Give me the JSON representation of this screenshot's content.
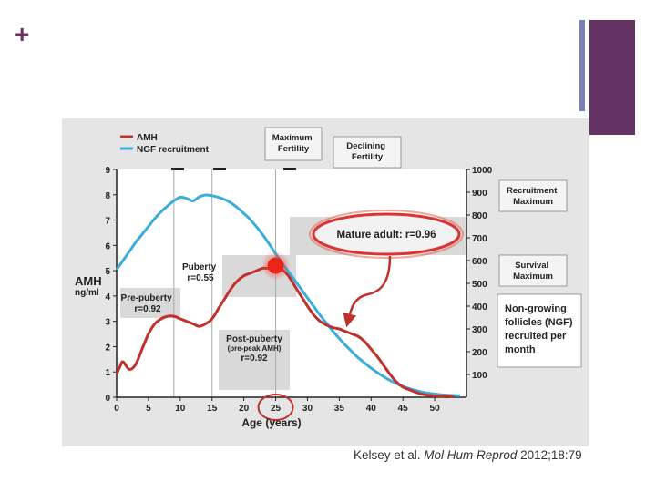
{
  "slide": {
    "plus_glyph": "+",
    "accent_colors": {
      "thin_bar": "#7c7fb3",
      "thick_bar": "#633262",
      "plus": "#6b2f66"
    },
    "citation": {
      "authors": "Kelsey et al. ",
      "journal": "Mol Hum Reprod",
      "rest": " 2012;18:79"
    }
  },
  "chart_data": {
    "type": "line",
    "xlabel": "Age (years)",
    "ylabel_left": "AMH",
    "ylabel_left_units": "ng/ml",
    "xlim": [
      0,
      55
    ],
    "ylim_left": [
      0,
      9
    ],
    "ylim_right": [
      0,
      1000
    ],
    "x_ticks": [
      0,
      5,
      10,
      15,
      20,
      25,
      30,
      35,
      40,
      45,
      50
    ],
    "y_left_ticks": [
      0,
      1,
      2,
      3,
      4,
      5,
      6,
      7,
      8,
      9
    ],
    "y_right_ticks": [
      100,
      200,
      300,
      400,
      500,
      600,
      700,
      800,
      900,
      1000
    ],
    "grid": {
      "vertical_lines_at": [
        9,
        15,
        25
      ]
    },
    "legend": {
      "placement": "top-left",
      "entries": [
        {
          "name": "AMH",
          "color": "#c0312b"
        },
        {
          "name": "NGF recruitment",
          "color": "#3aaed8"
        }
      ]
    },
    "series": [
      {
        "name": "AMH",
        "axis": "left",
        "color": "#c0312b",
        "x": [
          0,
          0.5,
          1,
          2,
          3,
          4,
          5,
          6,
          7,
          8,
          9,
          10,
          11,
          12,
          13,
          14,
          15,
          16,
          17,
          18,
          19,
          20,
          21,
          22,
          23,
          24,
          25,
          26,
          27,
          28,
          29,
          30,
          31,
          32,
          33,
          34,
          35,
          36,
          37,
          38,
          39,
          40,
          41,
          42,
          43,
          44,
          45,
          46,
          47,
          48,
          49,
          50,
          51,
          52,
          53
        ],
        "y": [
          0.9,
          1.2,
          1.4,
          1.1,
          1.3,
          1.9,
          2.5,
          2.9,
          3.1,
          3.2,
          3.2,
          3.1,
          3.0,
          2.9,
          2.8,
          2.9,
          3.1,
          3.5,
          3.9,
          4.3,
          4.6,
          4.8,
          4.9,
          5.0,
          5.1,
          5.1,
          5.2,
          5.05,
          4.8,
          4.4,
          4.0,
          3.6,
          3.25,
          3.0,
          2.85,
          2.75,
          2.7,
          2.6,
          2.5,
          2.4,
          2.2,
          1.9,
          1.6,
          1.25,
          0.9,
          0.6,
          0.4,
          0.3,
          0.2,
          0.12,
          0.08,
          0.05,
          0.04,
          0.06,
          0.02
        ]
      },
      {
        "name": "NGF recruitment",
        "axis": "right",
        "color": "#3aaed8",
        "x": [
          0,
          1,
          2,
          3,
          4,
          5,
          6,
          7,
          8,
          9,
          10,
          11,
          12,
          13,
          14,
          15,
          16,
          17,
          18,
          19,
          20,
          21,
          22,
          23,
          24,
          25,
          26,
          27,
          28,
          29,
          30,
          31,
          32,
          33,
          34,
          35,
          36,
          37,
          38,
          39,
          40,
          41,
          42,
          43,
          44,
          45,
          46,
          47,
          48,
          49,
          50,
          51,
          52,
          53,
          54
        ],
        "y": [
          560,
          600,
          640,
          680,
          715,
          750,
          785,
          815,
          840,
          862,
          878,
          873,
          862,
          880,
          888,
          885,
          878,
          868,
          853,
          832,
          807,
          780,
          748,
          712,
          672,
          630,
          590,
          552,
          514,
          475,
          436,
          398,
          360,
          325,
          290,
          258,
          228,
          200,
          173,
          150,
          128,
          108,
          90,
          74,
          60,
          48,
          38,
          30,
          23,
          18,
          14,
          11,
          9,
          8,
          7
        ]
      }
    ],
    "peak_marker": {
      "x": 25,
      "y": 5.2
    },
    "annotations": {
      "max_fertility": "Maximum\nFertility",
      "declining_fertility": "Declining\nFertility",
      "recruitment_maximum": "Recruitment\nMaximum",
      "survival_maximum": "Survival\nMaximum",
      "ngf_note": "Non-growing\nfollicles (NGF)\nrecruited per\nmonth",
      "mature_adult": "Mature adult: r=0.96",
      "puberty": "Puberty\nr=0.55",
      "pre_puberty": "Pre-puberty\nr=0.92",
      "post_puberty_title": "Post-puberty",
      "post_puberty_sub": "(pre-peak AMH)",
      "post_puberty_r": "r=0.92"
    },
    "highlighted_x_tick": 25
  }
}
